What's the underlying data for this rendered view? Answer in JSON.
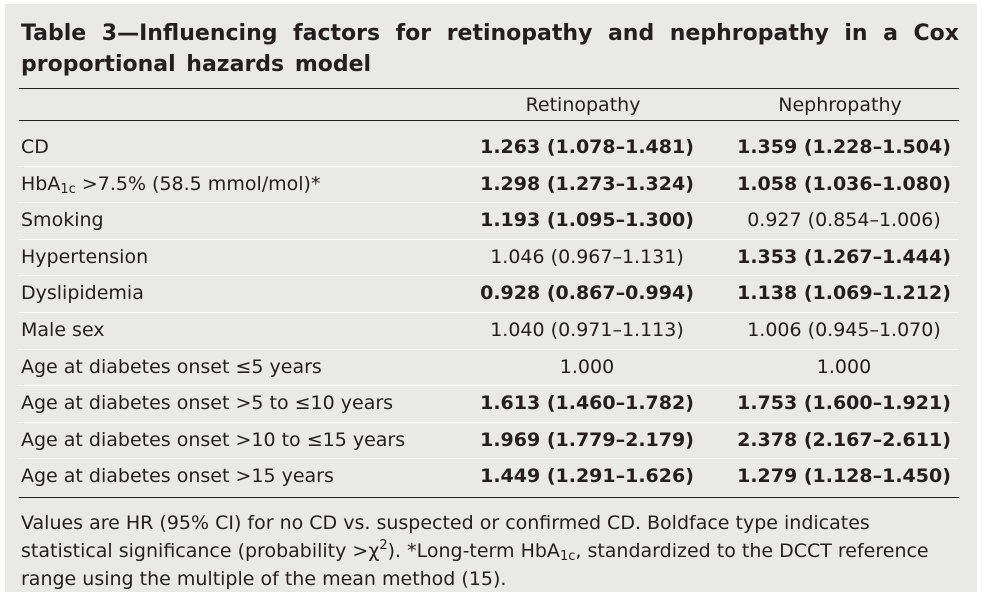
{
  "title": "Table 3—Influencing factors for retinopathy and nephropathy in a Cox proportional hazards model",
  "columns": [
    "Retinopathy",
    "Nephropathy"
  ],
  "rows": [
    {
      "label_pre": "CD",
      "label_sub": "",
      "label_post": "",
      "retinopathy": "1.263 (1.078–1.481)",
      "retinopathy_bold": true,
      "nephropathy": "1.359 (1.228–1.504)",
      "nephropathy_bold": true
    },
    {
      "label_pre": "HbA",
      "label_sub": "1c",
      "label_post": " >7.5% (58.5 mmol/mol)*",
      "retinopathy": "1.298 (1.273–1.324)",
      "retinopathy_bold": true,
      "nephropathy": "1.058 (1.036–1.080)",
      "nephropathy_bold": true
    },
    {
      "label_pre": "Smoking",
      "label_sub": "",
      "label_post": "",
      "retinopathy": "1.193 (1.095–1.300)",
      "retinopathy_bold": true,
      "nephropathy": "0.927 (0.854–1.006)",
      "nephropathy_bold": false
    },
    {
      "label_pre": "Hypertension",
      "label_sub": "",
      "label_post": "",
      "retinopathy": "1.046 (0.967–1.131)",
      "retinopathy_bold": false,
      "nephropathy": "1.353 (1.267–1.444)",
      "nephropathy_bold": true
    },
    {
      "label_pre": "Dyslipidemia",
      "label_sub": "",
      "label_post": "",
      "retinopathy": "0.928 (0.867–0.994)",
      "retinopathy_bold": true,
      "nephropathy": "1.138 (1.069–1.212)",
      "nephropathy_bold": true
    },
    {
      "label_pre": "Male sex",
      "label_sub": "",
      "label_post": "",
      "retinopathy": "1.040 (0.971–1.113)",
      "retinopathy_bold": false,
      "nephropathy": "1.006 (0.945–1.070)",
      "nephropathy_bold": false
    },
    {
      "label_pre": "Age at diabetes onset ≤5 years",
      "label_sub": "",
      "label_post": "",
      "retinopathy": "1.000",
      "retinopathy_bold": false,
      "nephropathy": "1.000",
      "nephropathy_bold": false
    },
    {
      "label_pre": "Age at diabetes onset >5 to ≤10 years",
      "label_sub": "",
      "label_post": "",
      "retinopathy": "1.613 (1.460–1.782)",
      "retinopathy_bold": true,
      "nephropathy": "1.753 (1.600–1.921)",
      "nephropathy_bold": true
    },
    {
      "label_pre": "Age at diabetes onset >10 to ≤15 years",
      "label_sub": "",
      "label_post": "",
      "retinopathy": "1.969 (1.779–2.179)",
      "retinopathy_bold": true,
      "nephropathy": "2.378 (2.167–2.611)",
      "nephropathy_bold": true
    },
    {
      "label_pre": "Age at diabetes onset >15 years",
      "label_sub": "",
      "label_post": "",
      "retinopathy": "1.449 (1.291–1.626)",
      "retinopathy_bold": true,
      "nephropathy": "1.279 (1.128–1.450)",
      "nephropathy_bold": true
    }
  ],
  "footnote": {
    "part1": "Values are HR (95% CI) for no CD vs. suspected or confirmed CD. Boldface type indicates statistical significance (probability >χ",
    "sup": "2",
    "part2": "). *Long-term HbA",
    "sub": "1c",
    "part3": ", standardized to the DCCT reference range using the multiple of the mean method (15)."
  }
}
